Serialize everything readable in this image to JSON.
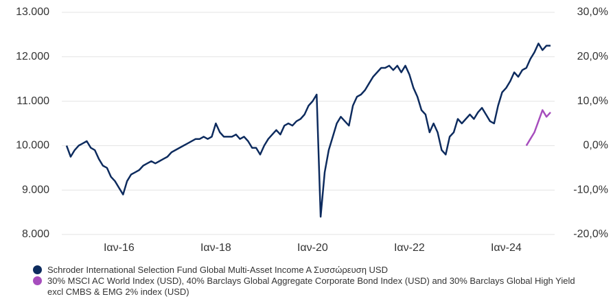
{
  "chart_data": {
    "type": "line",
    "x": [
      "2014-12",
      "2015-01",
      "2015-02",
      "2015-03",
      "2015-04",
      "2015-05",
      "2015-06",
      "2015-07",
      "2015-08",
      "2015-09",
      "2015-10",
      "2015-11",
      "2015-12",
      "2016-01",
      "2016-02",
      "2016-03",
      "2016-04",
      "2016-05",
      "2016-06",
      "2016-07",
      "2016-08",
      "2016-09",
      "2016-10",
      "2016-11",
      "2016-12",
      "2017-01",
      "2017-02",
      "2017-03",
      "2017-04",
      "2017-05",
      "2017-06",
      "2017-07",
      "2017-08",
      "2017-09",
      "2017-10",
      "2017-11",
      "2017-12",
      "2018-01",
      "2018-02",
      "2018-03",
      "2018-04",
      "2018-05",
      "2018-06",
      "2018-07",
      "2018-08",
      "2018-09",
      "2018-10",
      "2018-11",
      "2018-12",
      "2019-01",
      "2019-02",
      "2019-03",
      "2019-04",
      "2019-05",
      "2019-06",
      "2019-07",
      "2019-08",
      "2019-09",
      "2019-10",
      "2019-11",
      "2019-12",
      "2020-01",
      "2020-02",
      "2020-03",
      "2020-04",
      "2020-05",
      "2020-06",
      "2020-07",
      "2020-08",
      "2020-09",
      "2020-10",
      "2020-11",
      "2020-12",
      "2021-01",
      "2021-02",
      "2021-03",
      "2021-04",
      "2021-05",
      "2021-06",
      "2021-07",
      "2021-08",
      "2021-09",
      "2021-10",
      "2021-11",
      "2021-12",
      "2022-01",
      "2022-02",
      "2022-03",
      "2022-04",
      "2022-05",
      "2022-06",
      "2022-07",
      "2022-08",
      "2022-09",
      "2022-10",
      "2022-11",
      "2022-12",
      "2023-01",
      "2023-02",
      "2023-03",
      "2023-04",
      "2023-05",
      "2023-06",
      "2023-07",
      "2023-08",
      "2023-09",
      "2023-10",
      "2023-11",
      "2023-12",
      "2024-01",
      "2024-02",
      "2024-03",
      "2024-04",
      "2024-05",
      "2024-06",
      "2024-07",
      "2024-08",
      "2024-09",
      "2024-10",
      "2024-11",
      "2024-12"
    ],
    "series": [
      {
        "name": "Schroder International Selection Fund Global Multi-Asset Income A Συσσώρευση USD",
        "color": "#0d2b5e",
        "values": [
          10000,
          9750,
          9900,
          10000,
          10050,
          10100,
          9950,
          9900,
          9700,
          9550,
          9500,
          9300,
          9200,
          9050,
          8900,
          9200,
          9350,
          9400,
          9450,
          9550,
          9600,
          9650,
          9600,
          9650,
          9700,
          9750,
          9850,
          9900,
          9950,
          10000,
          10050,
          10100,
          10150,
          10150,
          10200,
          10150,
          10200,
          10500,
          10300,
          10200,
          10200,
          10200,
          10250,
          10150,
          10200,
          10100,
          9950,
          9950,
          9800,
          10000,
          10150,
          10250,
          10350,
          10250,
          10450,
          10500,
          10450,
          10550,
          10600,
          10700,
          10900,
          11000,
          11150,
          8400,
          9400,
          9900,
          10200,
          10500,
          10650,
          10550,
          10450,
          10900,
          11100,
          11150,
          11250,
          11400,
          11550,
          11650,
          11750,
          11750,
          11800,
          11700,
          11800,
          11650,
          11800,
          11600,
          11300,
          11100,
          10800,
          10700,
          10300,
          10500,
          10300,
          9900,
          9800,
          10200,
          10300,
          10600,
          10500,
          10600,
          10700,
          10600,
          10750,
          10850,
          10700,
          10550,
          10500,
          10900,
          11200,
          11300,
          11450,
          11650,
          11550,
          11700,
          11750,
          11950,
          12100,
          12300,
          12150,
          12250,
          12250
        ]
      },
      {
        "name": "30% MSCI AC World Index (USD), 40% Barclays Global Aggregate Corporate Bond Index (USD) and 30% Barclays Global High Yield excl CMBS & EMG 2% index (USD)",
        "color": "#a64dbd",
        "axis": "y2",
        "values": [
          null,
          null,
          null,
          null,
          null,
          null,
          null,
          null,
          null,
          null,
          null,
          null,
          null,
          null,
          null,
          null,
          null,
          null,
          null,
          null,
          null,
          null,
          null,
          null,
          null,
          null,
          null,
          null,
          null,
          null,
          null,
          null,
          null,
          null,
          null,
          null,
          null,
          null,
          null,
          null,
          null,
          null,
          null,
          null,
          null,
          null,
          null,
          null,
          null,
          null,
          null,
          null,
          null,
          null,
          null,
          null,
          null,
          null,
          null,
          null,
          null,
          null,
          null,
          null,
          null,
          null,
          null,
          null,
          null,
          null,
          null,
          null,
          null,
          null,
          null,
          null,
          null,
          null,
          null,
          null,
          null,
          null,
          null,
          null,
          null,
          null,
          null,
          null,
          null,
          null,
          null,
          null,
          null,
          null,
          null,
          null,
          null,
          null,
          null,
          null,
          null,
          null,
          null,
          null,
          null,
          null,
          null,
          null,
          null,
          null,
          null,
          null,
          null,
          null,
          0.0,
          1.5,
          3.0,
          5.5,
          8.0,
          6.5,
          7.5
        ]
      }
    ],
    "xlim": [
      "2014-12",
      "2024-12"
    ],
    "xticks": [
      {
        "value": "2016-01",
        "label": "Ιαν-16"
      },
      {
        "value": "2018-01",
        "label": "Ιαν-18"
      },
      {
        "value": "2020-01",
        "label": "Ιαν-20"
      },
      {
        "value": "2022-01",
        "label": "Ιαν-22"
      },
      {
        "value": "2024-01",
        "label": "Ιαν-24"
      }
    ],
    "ylim": [
      8000,
      13000
    ],
    "yticks": [
      {
        "value": 8000,
        "label": "8.000"
      },
      {
        "value": 9000,
        "label": "9.000"
      },
      {
        "value": 10000,
        "label": "10.000"
      },
      {
        "value": 11000,
        "label": "11.000"
      },
      {
        "value": 12000,
        "label": "12.000"
      },
      {
        "value": 13000,
        "label": "13.000"
      }
    ],
    "y2lim": [
      -20,
      30
    ],
    "y2ticks": [
      {
        "value": -20,
        "label": "-20,0%"
      },
      {
        "value": -10,
        "label": "-10,0%"
      },
      {
        "value": 0,
        "label": "0,0%"
      },
      {
        "value": 10,
        "label": "10,0%"
      },
      {
        "value": 20,
        "label": "20,0%"
      },
      {
        "value": 30,
        "label": "30,0%"
      }
    ],
    "grid": true
  }
}
